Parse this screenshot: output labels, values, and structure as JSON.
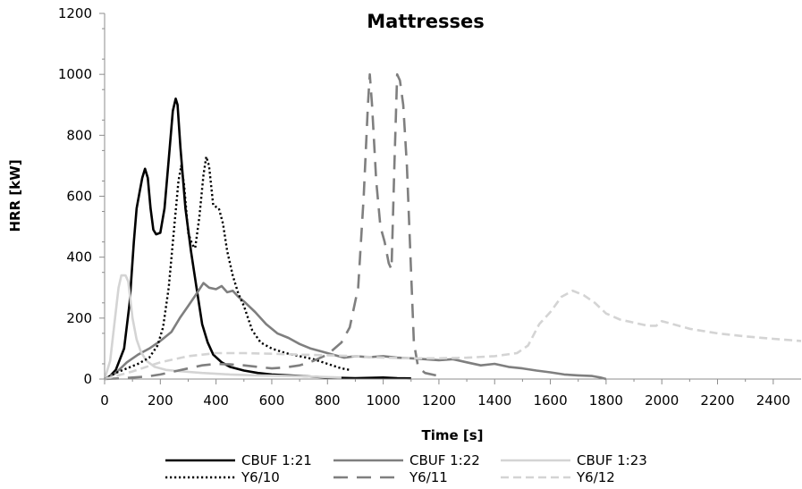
{
  "chart_data": {
    "type": "line",
    "title": "Mattresses",
    "xlabel": "Time [s]",
    "ylabel": "HRR [kW]",
    "xlim": [
      0,
      2500
    ],
    "ylim": [
      0,
      1200
    ],
    "x_ticks": [
      0,
      200,
      400,
      600,
      800,
      1000,
      1200,
      1400,
      1600,
      1800,
      2000,
      2200,
      2400
    ],
    "y_ticks": [
      0,
      200,
      400,
      600,
      800,
      1000,
      1200
    ],
    "grid": false,
    "legend_position": "bottom",
    "series": [
      {
        "name": "CBUF 1:21",
        "color": "#000000",
        "dash": "solid",
        "width": 2.6,
        "points": [
          [
            0,
            0
          ],
          [
            20,
            10
          ],
          [
            40,
            30
          ],
          [
            70,
            100
          ],
          [
            90,
            250
          ],
          [
            105,
            450
          ],
          [
            115,
            560
          ],
          [
            125,
            610
          ],
          [
            135,
            660
          ],
          [
            145,
            690
          ],
          [
            155,
            660
          ],
          [
            165,
            560
          ],
          [
            175,
            490
          ],
          [
            185,
            475
          ],
          [
            200,
            480
          ],
          [
            215,
            560
          ],
          [
            230,
            720
          ],
          [
            245,
            880
          ],
          [
            255,
            920
          ],
          [
            262,
            900
          ],
          [
            272,
            760
          ],
          [
            290,
            560
          ],
          [
            310,
            420
          ],
          [
            330,
            300
          ],
          [
            350,
            180
          ],
          [
            370,
            120
          ],
          [
            390,
            80
          ],
          [
            420,
            55
          ],
          [
            450,
            40
          ],
          [
            500,
            28
          ],
          [
            550,
            20
          ],
          [
            600,
            15
          ],
          [
            700,
            10
          ],
          [
            800,
            5
          ],
          [
            900,
            3
          ],
          [
            1000,
            5
          ],
          [
            1050,
            3
          ],
          [
            1100,
            2
          ]
        ]
      },
      {
        "name": "CBUF 1:22",
        "color": "#7f7f7f",
        "dash": "solid",
        "width": 2.6,
        "points": [
          [
            0,
            0
          ],
          [
            40,
            20
          ],
          [
            80,
            55
          ],
          [
            120,
            80
          ],
          [
            160,
            100
          ],
          [
            200,
            125
          ],
          [
            240,
            155
          ],
          [
            270,
            200
          ],
          [
            300,
            240
          ],
          [
            330,
            280
          ],
          [
            355,
            315
          ],
          [
            375,
            300
          ],
          [
            400,
            295
          ],
          [
            420,
            305
          ],
          [
            440,
            285
          ],
          [
            460,
            290
          ],
          [
            480,
            270
          ],
          [
            500,
            255
          ],
          [
            540,
            220
          ],
          [
            580,
            180
          ],
          [
            620,
            150
          ],
          [
            660,
            135
          ],
          [
            700,
            115
          ],
          [
            740,
            100
          ],
          [
            780,
            90
          ],
          [
            820,
            80
          ],
          [
            860,
            70
          ],
          [
            900,
            75
          ],
          [
            950,
            72
          ],
          [
            1000,
            75
          ],
          [
            1050,
            70
          ],
          [
            1100,
            68
          ],
          [
            1150,
            65
          ],
          [
            1200,
            62
          ],
          [
            1250,
            65
          ],
          [
            1300,
            55
          ],
          [
            1350,
            45
          ],
          [
            1400,
            50
          ],
          [
            1450,
            40
          ],
          [
            1500,
            35
          ],
          [
            1550,
            28
          ],
          [
            1600,
            22
          ],
          [
            1650,
            15
          ],
          [
            1700,
            12
          ],
          [
            1750,
            10
          ],
          [
            1780,
            5
          ],
          [
            1800,
            0
          ]
        ]
      },
      {
        "name": "CBUF 1:23",
        "color": "#d4d4d4",
        "dash": "solid",
        "width": 2.6,
        "points": [
          [
            0,
            0
          ],
          [
            20,
            60
          ],
          [
            35,
            180
          ],
          [
            50,
            300
          ],
          [
            60,
            340
          ],
          [
            75,
            340
          ],
          [
            85,
            320
          ],
          [
            100,
            200
          ],
          [
            115,
            130
          ],
          [
            130,
            90
          ],
          [
            150,
            60
          ],
          [
            180,
            40
          ],
          [
            220,
            30
          ],
          [
            280,
            25
          ],
          [
            350,
            20
          ],
          [
            450,
            15
          ],
          [
            550,
            12
          ],
          [
            650,
            10
          ],
          [
            750,
            8
          ],
          [
            850,
            5
          ]
        ]
      },
      {
        "name": "Y6/10",
        "color": "#000000",
        "dash": "2.2,2.8",
        "width": 2.4,
        "points": [
          [
            0,
            0
          ],
          [
            40,
            20
          ],
          [
            80,
            35
          ],
          [
            120,
            50
          ],
          [
            160,
            70
          ],
          [
            190,
            110
          ],
          [
            210,
            170
          ],
          [
            230,
            300
          ],
          [
            250,
            500
          ],
          [
            265,
            650
          ],
          [
            275,
            700
          ],
          [
            285,
            640
          ],
          [
            300,
            480
          ],
          [
            315,
            440
          ],
          [
            325,
            430
          ],
          [
            340,
            530
          ],
          [
            355,
            670
          ],
          [
            365,
            730
          ],
          [
            375,
            700
          ],
          [
            390,
            570
          ],
          [
            410,
            560
          ],
          [
            425,
            510
          ],
          [
            440,
            420
          ],
          [
            460,
            340
          ],
          [
            480,
            280
          ],
          [
            500,
            240
          ],
          [
            530,
            160
          ],
          [
            560,
            120
          ],
          [
            600,
            100
          ],
          [
            650,
            85
          ],
          [
            700,
            75
          ],
          [
            750,
            65
          ],
          [
            800,
            50
          ],
          [
            850,
            35
          ],
          [
            880,
            30
          ]
        ]
      },
      {
        "name": "Y6/11",
        "color": "#7f7f7f",
        "dash": "16,10",
        "width": 2.6,
        "points": [
          [
            0,
            0
          ],
          [
            50,
            2
          ],
          [
            100,
            5
          ],
          [
            150,
            8
          ],
          [
            200,
            15
          ],
          [
            250,
            25
          ],
          [
            300,
            35
          ],
          [
            350,
            45
          ],
          [
            400,
            50
          ],
          [
            450,
            48
          ],
          [
            500,
            45
          ],
          [
            550,
            40
          ],
          [
            600,
            35
          ],
          [
            650,
            38
          ],
          [
            700,
            45
          ],
          [
            750,
            60
          ],
          [
            800,
            80
          ],
          [
            850,
            120
          ],
          [
            880,
            170
          ],
          [
            910,
            300
          ],
          [
            930,
            600
          ],
          [
            945,
            900
          ],
          [
            952,
            1000
          ],
          [
            960,
            900
          ],
          [
            975,
            650
          ],
          [
            990,
            500
          ],
          [
            1005,
            450
          ],
          [
            1020,
            380
          ],
          [
            1030,
            360
          ],
          [
            1040,
            700
          ],
          [
            1050,
            1000
          ],
          [
            1060,
            980
          ],
          [
            1072,
            900
          ],
          [
            1085,
            700
          ],
          [
            1100,
            350
          ],
          [
            1110,
            120
          ],
          [
            1125,
            40
          ],
          [
            1150,
            20
          ],
          [
            1200,
            10
          ]
        ]
      },
      {
        "name": "Y6/12",
        "color": "#d4d4d4",
        "dash": "9,5",
        "width": 2.6,
        "points": [
          [
            0,
            0
          ],
          [
            100,
            25
          ],
          [
            200,
            55
          ],
          [
            300,
            75
          ],
          [
            400,
            85
          ],
          [
            500,
            85
          ],
          [
            600,
            83
          ],
          [
            700,
            80
          ],
          [
            800,
            78
          ],
          [
            900,
            75
          ],
          [
            1000,
            70
          ],
          [
            1100,
            68
          ],
          [
            1200,
            68
          ],
          [
            1300,
            70
          ],
          [
            1400,
            75
          ],
          [
            1480,
            85
          ],
          [
            1520,
            110
          ],
          [
            1560,
            180
          ],
          [
            1600,
            220
          ],
          [
            1640,
            270
          ],
          [
            1680,
            290
          ],
          [
            1720,
            275
          ],
          [
            1760,
            250
          ],
          [
            1800,
            215
          ],
          [
            1850,
            195
          ],
          [
            1900,
            185
          ],
          [
            1950,
            175
          ],
          [
            1980,
            175
          ],
          [
            2000,
            190
          ],
          [
            2040,
            180
          ],
          [
            2100,
            165
          ],
          [
            2200,
            150
          ],
          [
            2300,
            140
          ],
          [
            2400,
            132
          ],
          [
            2500,
            125
          ]
        ]
      }
    ]
  }
}
